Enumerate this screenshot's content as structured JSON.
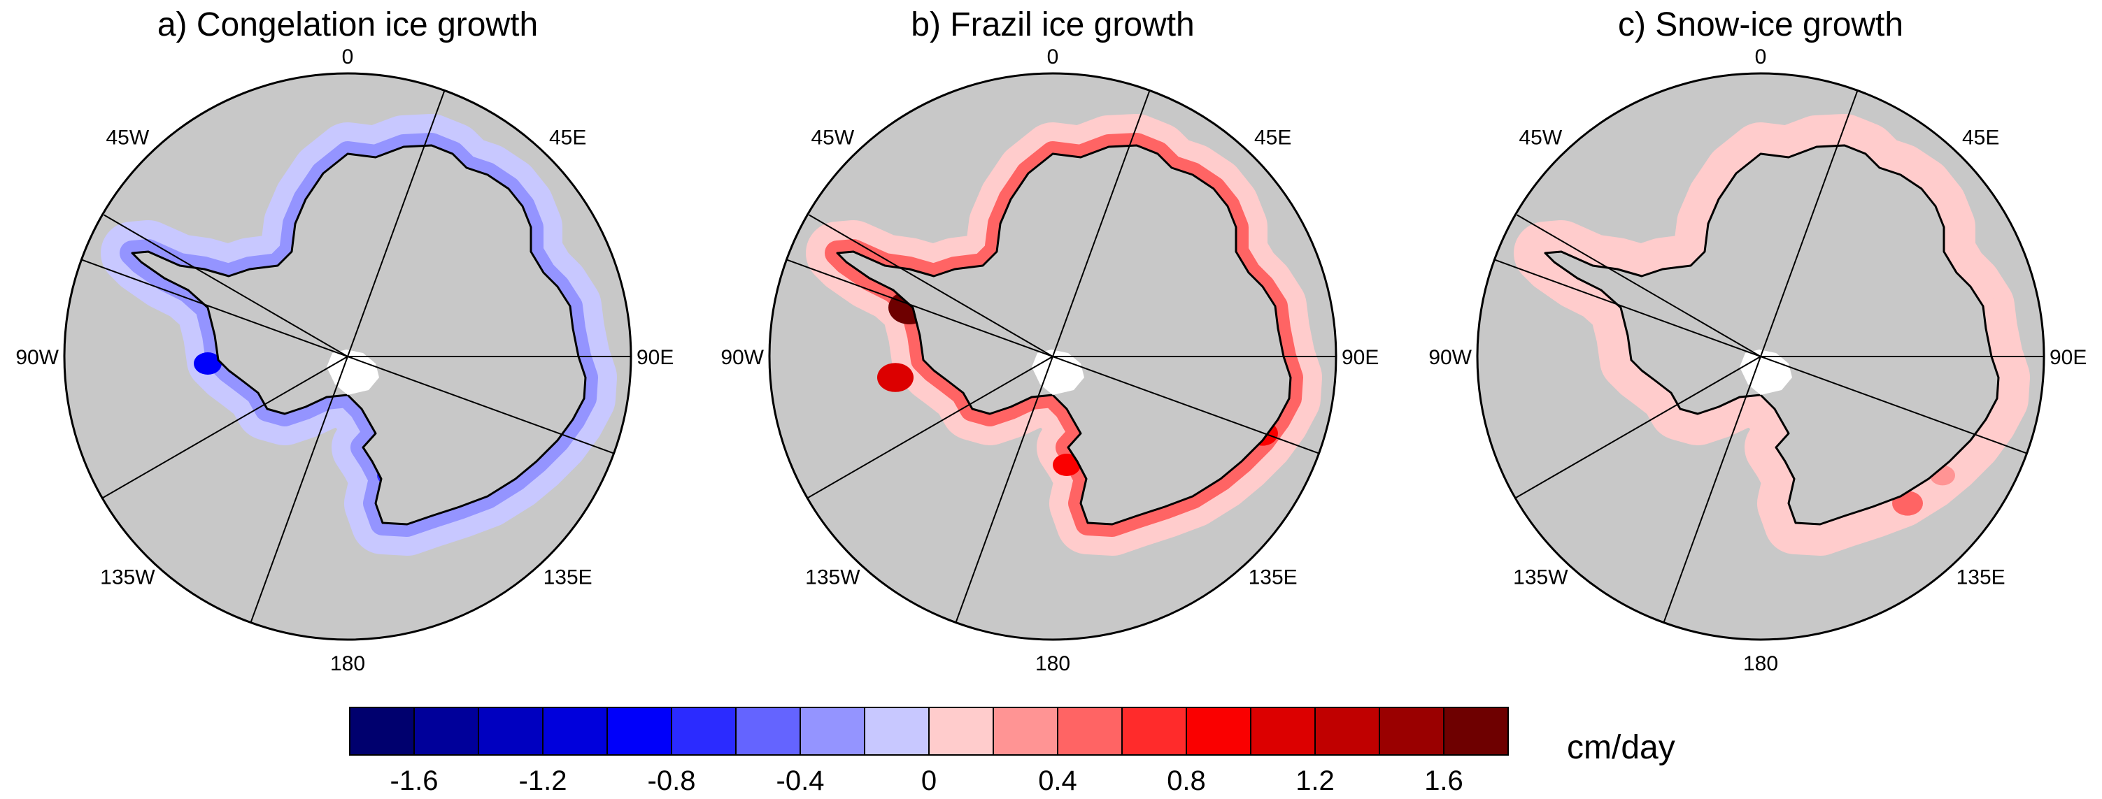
{
  "panels": [
    {
      "title": "a) Congelation ice growth"
    },
    {
      "title": "b) Frazil ice growth"
    },
    {
      "title": "c) Snow-ice growth"
    }
  ],
  "longitude_labels": [
    "0",
    "45E",
    "90E",
    "135E",
    "180",
    "135W",
    "90W",
    "45W"
  ],
  "colorbar": {
    "units": "cm/day",
    "tick_labels": [
      "-1.6",
      "-1.2",
      "-0.8",
      "-0.4",
      "0",
      "0.4",
      "0.8",
      "1.2",
      "1.6"
    ],
    "colors": [
      "#00006e",
      "#00009a",
      "#0000c0",
      "#0000dc",
      "#0000fa",
      "#2b2bff",
      "#6464ff",
      "#9494ff",
      "#c8c8ff",
      "#ffcccc",
      "#ff9494",
      "#ff6464",
      "#ff2b2b",
      "#fa0000",
      "#dc0000",
      "#c00000",
      "#9a0000",
      "#6e0000"
    ]
  },
  "chart_data": [
    {
      "type": "heatmap",
      "projection": "south-polar-stereographic",
      "title": "a) Congelation ice growth",
      "units": "cm/day",
      "value_range": [
        -1.6,
        1.6
      ],
      "pattern": "negative (blue) band along the Antarctic coast, mostly -0.2 to -0.6, locally about -1.2 in the Bellingshausen Sea",
      "land_color": "#c8c8c8"
    },
    {
      "type": "heatmap",
      "projection": "south-polar-stereographic",
      "title": "b) Frazil ice growth",
      "units": "cm/day",
      "value_range": [
        -1.6,
        1.6
      ],
      "pattern": "positive (red) band along the Antarctic coast, mostly 0.2 to 0.8, locally about 1.6 west of the Antarctic Peninsula",
      "land_color": "#c8c8c8"
    },
    {
      "type": "heatmap",
      "projection": "south-polar-stereographic",
      "title": "c) Snow-ice growth",
      "units": "cm/day",
      "value_range": [
        -1.6,
        1.6
      ],
      "pattern": "weak positive (light red) band along the Antarctic coast, mostly 0 to 0.4",
      "land_color": "#c8c8c8"
    }
  ]
}
